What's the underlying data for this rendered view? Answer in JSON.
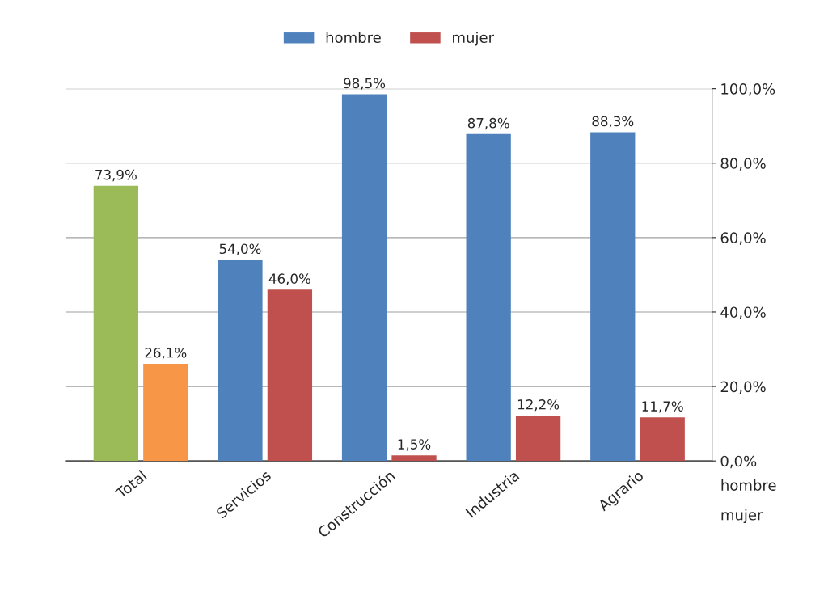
{
  "chart_data": {
    "type": "bar",
    "categories": [
      "Total",
      "Servicios",
      "Construcción",
      "Industria",
      "Agrario"
    ],
    "series": [
      {
        "name": "hombre",
        "color": "#4f81bd",
        "colors": [
          "#9bbb59",
          "#4f81bd",
          "#4f81bd",
          "#4f81bd",
          "#4f81bd"
        ],
        "values": [
          73.9,
          54.0,
          98.5,
          87.8,
          88.3
        ],
        "value_labels": [
          "73,9%",
          "54,0%",
          "98,5%",
          "87,8%",
          "88,3%"
        ]
      },
      {
        "name": "mujer",
        "color": "#c0504d",
        "colors": [
          "#f79646",
          "#c0504d",
          "#c0504d",
          "#c0504d",
          "#c0504d"
        ],
        "values": [
          26.1,
          46.0,
          1.5,
          12.2,
          11.7
        ],
        "value_labels": [
          "26,1%",
          "46,0%",
          "1,5%",
          "12,2%",
          "11,7%"
        ]
      }
    ],
    "ylim": [
      0,
      100
    ],
    "yticks": [
      {
        "value": 0,
        "label": "0,0%"
      },
      {
        "value": 20,
        "label": "20,0%"
      },
      {
        "value": 40,
        "label": "40,0%"
      },
      {
        "value": 60,
        "label": "60,0%"
      },
      {
        "value": 80,
        "label": "80,0%"
      },
      {
        "value": 100,
        "label": "100,0%"
      }
    ],
    "annotations": [
      "hombre",
      "mujer"
    ],
    "grid": "y",
    "legend": "top"
  }
}
